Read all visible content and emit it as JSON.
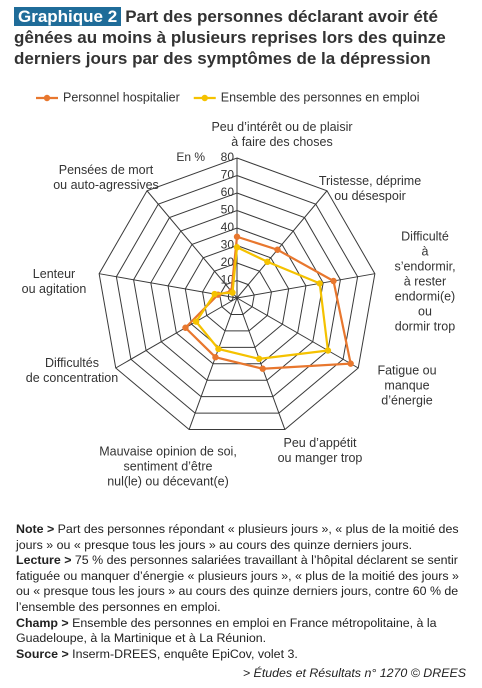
{
  "chart_data": {
    "type": "radar",
    "figure_label": "Graphique 2",
    "title": "Part des personnes déclarant avoir été gênées au moins à plusieurs reprises lors des quinze derniers jours par des symptômes de la dépression",
    "unit_label": "En %",
    "categories": [
      "Peu d’intérêt ou de plaisir\nà faire des choses",
      "Tristesse, déprime\nou désespoir",
      "Difficulté\nà s’endormir,\nà rester\nendormi(e) ou\ndormir trop",
      "Fatigue ou\nmanque d’énergie",
      "Peu d’appétit\nou manger trop",
      "Mauvaise opinion de soi,\nsentiment d’être\nnul(le) ou décevant(e)",
      "Difficultés\nde concentration",
      "Lenteur\nou agitation",
      "Pensées de mort\nou auto-agressives"
    ],
    "series": [
      {
        "name": "Personnel hospitalier",
        "color": "#e8772e",
        "values": [
          35,
          36,
          56,
          75,
          43,
          36,
          34,
          11,
          5
        ]
      },
      {
        "name": "Ensemble des personnes en emploi",
        "color": "#f5c200",
        "values": [
          29,
          27,
          48,
          60,
          37,
          31,
          27,
          13,
          4
        ]
      }
    ],
    "ylim": [
      0,
      80
    ],
    "yticks": [
      0,
      10,
      20,
      30,
      40,
      50,
      60,
      70,
      80
    ],
    "grid": true,
    "notes": [
      {
        "label": "Note >",
        "text": " Part des personnes répondant « plusieurs jours », « plus de la moitié des jours » ou « presque tous les jours » au cours des quinze derniers jours."
      },
      {
        "label": "Lecture >",
        "text": " 75 % des personnes salariées travaillant à l’hôpital déclarent se sentir fatiguée ou manquer d’énergie « plusieurs jours », « plus de la moitié des jours » ou « presque tous les jours » au cours des quinze derniers jours, contre 60 % de l’ensemble des personnes en emploi."
      },
      {
        "label": "Champ >",
        "text": " Ensemble des personnes en emploi en France métropolitaine, à la Guadeloupe, à la Martinique et à La Réunion."
      },
      {
        "label": "Source >",
        "text": " Inserm-DREES, enquête EpiCov, volet 3."
      }
    ],
    "footer": "> Études et Résultats n° 1270 © DREES"
  }
}
